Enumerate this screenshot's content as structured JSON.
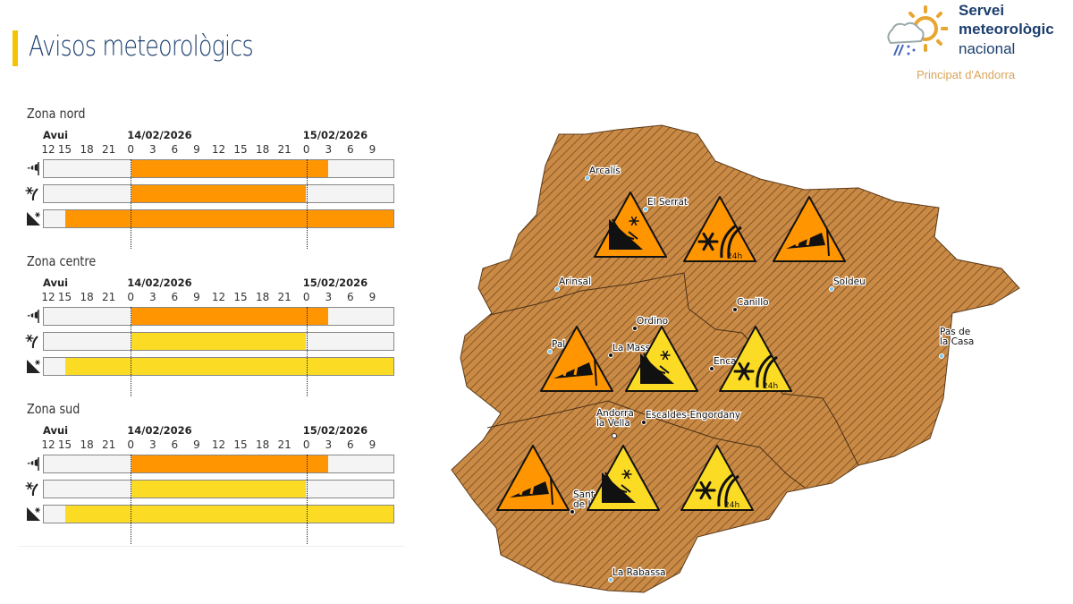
{
  "header": {
    "title": "Avisos meteorològics"
  },
  "logo": {
    "line1": "Servei",
    "line2": "meteorològic",
    "line3": "nacional",
    "subtitle": "Principat d'Andorra"
  },
  "timeline": {
    "day_labels": [
      {
        "label": "Avui",
        "hour": 0
      },
      {
        "label": "14/02/2026",
        "hour": 12
      },
      {
        "label": "15/02/2026",
        "hour": 36
      }
    ],
    "tick_labels": [
      "12",
      "15",
      "18",
      "21",
      "0",
      "3",
      "6",
      "9",
      "12",
      "15",
      "18",
      "21",
      "0",
      "3",
      "6",
      "9"
    ],
    "total_hours": 48
  },
  "colors": {
    "orange": "#ff9500",
    "yellow": "#fcdb25",
    "map": "#c98a45"
  },
  "zones": [
    {
      "name": "Zona nord",
      "rows": [
        {
          "icon": "wind-icon",
          "start": 12,
          "end": 39,
          "level": "orange"
        },
        {
          "icon": "snow-icon",
          "start": 12,
          "end": 36,
          "level": "orange"
        },
        {
          "icon": "avalanche-icon",
          "start": 3,
          "end": 48,
          "level": "orange"
        }
      ]
    },
    {
      "name": "Zona centre",
      "rows": [
        {
          "icon": "wind-icon",
          "start": 12,
          "end": 39,
          "level": "orange"
        },
        {
          "icon": "snow-icon",
          "start": 12,
          "end": 36,
          "level": "yellow"
        },
        {
          "icon": "avalanche-icon",
          "start": 3,
          "end": 48,
          "level": "yellow"
        }
      ]
    },
    {
      "name": "Zona sud",
      "rows": [
        {
          "icon": "wind-icon",
          "start": 12,
          "end": 39,
          "level": "orange"
        },
        {
          "icon": "snow-icon",
          "start": 12,
          "end": 36,
          "level": "yellow"
        },
        {
          "icon": "avalanche-icon",
          "start": 3,
          "end": 48,
          "level": "yellow"
        }
      ]
    }
  ],
  "map": {
    "towns": [
      {
        "name": [
          "Arcalís"
        ],
        "type": "station"
      },
      {
        "name": [
          "El Serrat"
        ],
        "type": "station"
      },
      {
        "name": [
          "Arinsal"
        ],
        "type": "station"
      },
      {
        "name": [
          "Soldeu"
        ],
        "type": "station"
      },
      {
        "name": [
          "Canillo"
        ],
        "type": "town"
      },
      {
        "name": [
          "Ordino"
        ],
        "type": "town"
      },
      {
        "name": [
          "Pal"
        ],
        "type": "station"
      },
      {
        "name": [
          "La Massana"
        ],
        "type": "town"
      },
      {
        "name": [
          "Encamp"
        ],
        "type": "town"
      },
      {
        "name": [
          "Pas de",
          "la Casa"
        ],
        "type": "station"
      },
      {
        "name": [
          "Andorra",
          "la Vella"
        ],
        "type": "capital"
      },
      {
        "name": [
          "Escaldes-Engordany"
        ],
        "type": "town"
      },
      {
        "name": [
          "Sant",
          "de L"
        ],
        "type": "town"
      },
      {
        "name": [
          "La Rabassa"
        ],
        "type": "station"
      }
    ],
    "warnings": [
      {
        "zone": "nord",
        "type": "avalanche",
        "level": "orange"
      },
      {
        "zone": "nord",
        "type": "snow",
        "level": "orange",
        "label": "24h"
      },
      {
        "zone": "nord",
        "type": "wind",
        "level": "orange"
      },
      {
        "zone": "centre",
        "type": "wind",
        "level": "orange"
      },
      {
        "zone": "centre",
        "type": "avalanche",
        "level": "yellow"
      },
      {
        "zone": "centre",
        "type": "snow",
        "level": "yellow",
        "label": "24h"
      },
      {
        "zone": "sud",
        "type": "wind",
        "level": "orange"
      },
      {
        "zone": "sud",
        "type": "avalanche",
        "level": "yellow"
      },
      {
        "zone": "sud",
        "type": "snow",
        "level": "yellow",
        "label": "24h"
      }
    ]
  }
}
